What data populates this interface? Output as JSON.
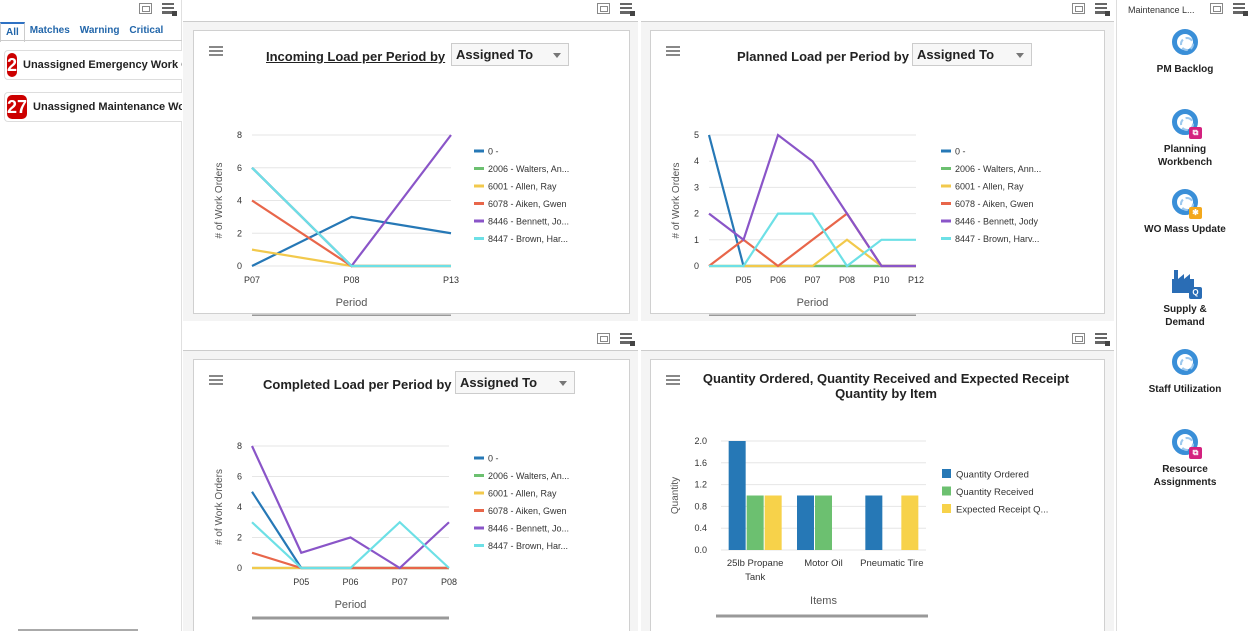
{
  "left_panel": {
    "tabs": [
      "All",
      "Matches",
      "Warning",
      "Critical"
    ],
    "alerts": [
      {
        "count": "2",
        "label": "Unassigned Emergency Work Orders"
      },
      {
        "count": "27",
        "label": "Unassigned Maintenance Work Orders"
      }
    ]
  },
  "charts": [
    {
      "title": "Incoming Load per Period by",
      "select": "Assigned To",
      "chart_data": {
        "type": "line",
        "ylabel": "# of Work Orders",
        "xlabel": "Period",
        "categories": [
          "P07",
          "P08",
          "P13"
        ],
        "ylim": [
          0,
          8
        ],
        "yticks": [
          0,
          2,
          4,
          6,
          8
        ],
        "series": [
          {
            "name": "0 -",
            "color": "#2678b6",
            "values": [
              0,
              3,
              2
            ]
          },
          {
            "name": "2006 - Walters, An...",
            "color": "#6cc070",
            "values": [
              6,
              0,
              0
            ]
          },
          {
            "name": "6001 - Allen, Ray",
            "color": "#f2c94c",
            "values": [
              1,
              0,
              0
            ]
          },
          {
            "name": "6078 - Aiken, Gwen",
            "color": "#e8664a",
            "values": [
              4,
              0,
              0
            ]
          },
          {
            "name": "8446 - Bennett, Jo...",
            "color": "#8a55c8",
            "values": [
              6,
              0,
              8
            ]
          },
          {
            "name": "8447 - Brown, Har...",
            "color": "#6de0e6",
            "values": [
              6,
              0,
              0
            ]
          }
        ]
      }
    },
    {
      "title": "Planned Load per Period by",
      "select": "Assigned To",
      "chart_data": {
        "type": "line",
        "ylabel": "# of Work Orders",
        "xlabel": "Period",
        "categories": [
          "",
          "P05",
          "P06",
          "P07",
          "P08",
          "P10",
          "P12"
        ],
        "ylim": [
          0,
          5
        ],
        "yticks": [
          0,
          1,
          2,
          3,
          4,
          5
        ],
        "series": [
          {
            "name": "0 -",
            "color": "#2678b6",
            "values": [
              5,
              0,
              0,
              0,
              0,
              0,
              0
            ]
          },
          {
            "name": "2006 - Walters, Ann...",
            "color": "#6cc070",
            "values": [
              0,
              0,
              0,
              0,
              0,
              0,
              0
            ]
          },
          {
            "name": "6001 - Allen, Ray",
            "color": "#f2c94c",
            "values": [
              0,
              0,
              0,
              0,
              1,
              0,
              0
            ]
          },
          {
            "name": "6078 - Aiken, Gwen",
            "color": "#e8664a",
            "values": [
              0,
              1,
              0,
              1,
              2,
              0,
              0
            ]
          },
          {
            "name": "8446 - Bennett, Jody",
            "color": "#8a55c8",
            "values": [
              2,
              1,
              5,
              4,
              2,
              0,
              0
            ]
          },
          {
            "name": "8447 - Brown, Harv...",
            "color": "#6de0e6",
            "values": [
              0,
              0,
              2,
              2,
              0,
              1,
              1
            ]
          }
        ]
      }
    },
    {
      "title": "Completed Load per Period by",
      "select": "Assigned To",
      "chart_data": {
        "type": "line",
        "ylabel": "# of Work Orders",
        "xlabel": "Period",
        "categories": [
          "",
          "P05",
          "P06",
          "P07",
          "P08"
        ],
        "ylim": [
          0,
          8
        ],
        "yticks": [
          0,
          2,
          4,
          6,
          8
        ],
        "series": [
          {
            "name": "0 -",
            "color": "#2678b6",
            "values": [
              5,
              0,
              0,
              0,
              0
            ]
          },
          {
            "name": "2006 - Walters, An...",
            "color": "#6cc070",
            "values": [
              0,
              0,
              0,
              0,
              0
            ]
          },
          {
            "name": "6001 - Allen, Ray",
            "color": "#f2c94c",
            "values": [
              0,
              0,
              0,
              0,
              0
            ]
          },
          {
            "name": "6078 - Aiken, Gwen",
            "color": "#e8664a",
            "values": [
              1,
              0,
              0,
              0,
              0
            ]
          },
          {
            "name": "8446 - Bennett, Jo...",
            "color": "#8a55c8",
            "values": [
              8,
              1,
              2,
              0,
              3
            ]
          },
          {
            "name": "8447 - Brown, Har...",
            "color": "#6de0e6",
            "values": [
              3,
              0,
              0,
              3,
              0
            ]
          }
        ]
      }
    },
    {
      "title": "Quantity Ordered, Quantity Received and Expected Receipt Quantity by Item",
      "chart_data": {
        "type": "bar",
        "ylabel": "Quantity",
        "xlabel": "Items",
        "categories": [
          "25lb Propane Tank",
          "Motor Oil",
          "Pneumatic Tire"
        ],
        "ylim": [
          0,
          2.0
        ],
        "yticks": [
          "0.0",
          "0.4",
          "0.8",
          "1.2",
          "1.6",
          "2.0"
        ],
        "series": [
          {
            "name": "Quantity Ordered",
            "color": "#2678b6",
            "values": [
              2,
              1,
              1
            ]
          },
          {
            "name": "Quantity Received",
            "color": "#6cc070",
            "values": [
              1,
              1,
              0
            ]
          },
          {
            "name": "Expected Receipt Q...",
            "color": "#f7d24a",
            "values": [
              1,
              0,
              1
            ]
          }
        ]
      }
    }
  ],
  "right_panel": {
    "header": "Maintenance L...",
    "apps": [
      {
        "label": "PM Backlog",
        "badge": "",
        "badge_color": ""
      },
      {
        "label": "Planning Workbench",
        "badge": "⧉",
        "badge_color": "#d4217f"
      },
      {
        "label": "WO Mass Update",
        "badge": "✱",
        "badge_color": "#f3a81c"
      },
      {
        "label": "Supply & Demand",
        "badge": "Q",
        "badge_color": "#2a6db5"
      },
      {
        "label": "Staff Utilization",
        "badge": "",
        "badge_color": ""
      },
      {
        "label": "Resource Assignments",
        "badge": "⧉",
        "badge_color": "#d4217f"
      }
    ]
  }
}
